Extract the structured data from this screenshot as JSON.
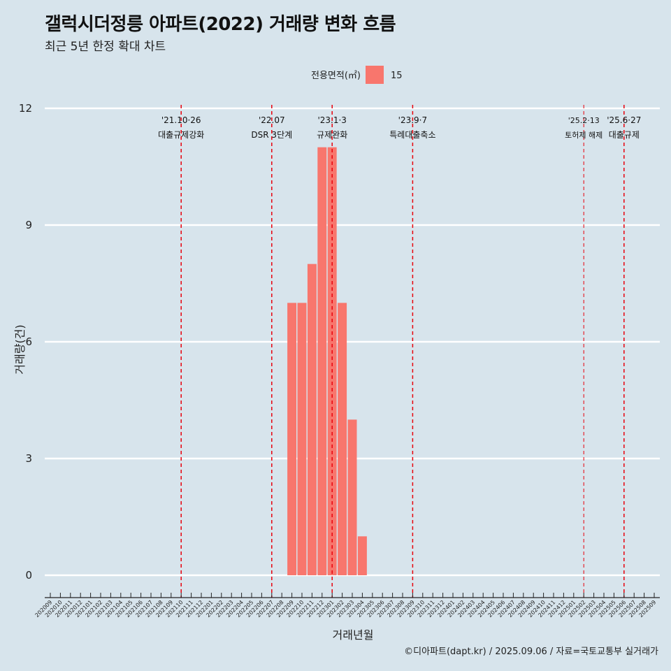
{
  "title": "갤럭시더정릉 아파트(2022) 거래량 변화 흐름",
  "subtitle": "최근 5년 한정 확대 차트",
  "caption": "©디아파트(dapt.kr) / 2025.09.06 / 자료=국토교통부 실거래가",
  "colors": {
    "background": "#d7e4ec",
    "bar": "#f8766d",
    "grid": "#ffffff",
    "event_line": "#e8000b"
  },
  "chart_data": {
    "type": "bar",
    "xlabel": "거래년월",
    "ylabel": "거래량(건)",
    "ylim": [
      0,
      12
    ],
    "yticks": [
      0,
      3,
      6,
      9,
      12
    ],
    "legend": {
      "title": "전용면적(㎡)",
      "entries": [
        "15"
      ],
      "position": "top"
    },
    "categories": [
      "202009",
      "202010",
      "202011",
      "202012",
      "202101",
      "202102",
      "202103",
      "202104",
      "202105",
      "202106",
      "202107",
      "202108",
      "202109",
      "202110",
      "202111",
      "202112",
      "202201",
      "202202",
      "202203",
      "202204",
      "202205",
      "202206",
      "202207",
      "202208",
      "202209",
      "202210",
      "202211",
      "202212",
      "202301",
      "202302",
      "202303",
      "202304",
      "202305",
      "202306",
      "202307",
      "202308",
      "202309",
      "202310",
      "202311",
      "202312",
      "202401",
      "202402",
      "202403",
      "202404",
      "202405",
      "202406",
      "202407",
      "202408",
      "202409",
      "202410",
      "202411",
      "202412",
      "202501",
      "202502",
      "202503",
      "202504",
      "202505",
      "202506",
      "202507",
      "202508",
      "202509"
    ],
    "series": [
      {
        "name": "15",
        "values": [
          0,
          0,
          0,
          0,
          0,
          0,
          0,
          0,
          0,
          0,
          0,
          0,
          0,
          0,
          0,
          0,
          0,
          0,
          0,
          0,
          0,
          0,
          0,
          0,
          7,
          7,
          8,
          11,
          11,
          7,
          4,
          1,
          0,
          0,
          0,
          0,
          0,
          0,
          0,
          0,
          0,
          0,
          0,
          0,
          0,
          0,
          0,
          0,
          0,
          0,
          0,
          0,
          0,
          0,
          0,
          0,
          0,
          0,
          0,
          0,
          0
        ]
      }
    ],
    "events": [
      {
        "date": "'21.10·26",
        "label": "대출규제강화",
        "at": "202110"
      },
      {
        "date": "'22.07",
        "label": "DSR 3단계",
        "at": "202207"
      },
      {
        "date": "'23.1·3",
        "label": "규제완화",
        "at": "202301"
      },
      {
        "date": "'23.9·7",
        "label": "특례대출축소",
        "at": "202309"
      },
      {
        "date": "'25.2·13",
        "label": "토허제 해제",
        "at": "202502"
      },
      {
        "date": "'25.6·27",
        "label": "대출규제",
        "at": "202506"
      }
    ]
  }
}
